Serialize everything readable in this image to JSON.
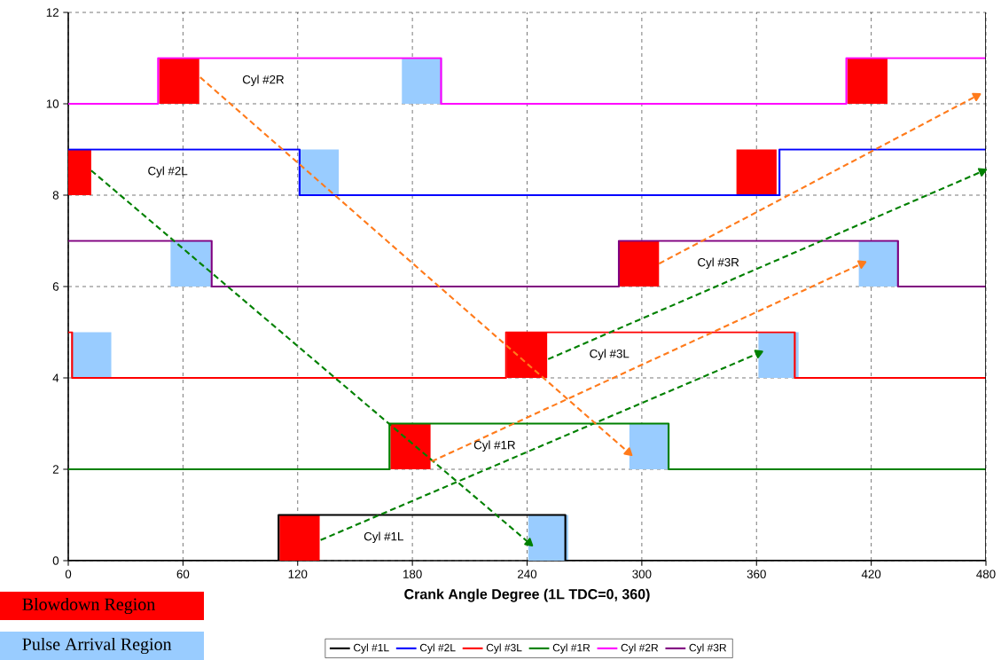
{
  "chart_data": {
    "type": "step",
    "xlabel": "**Crank Angle Degree (1L TDC=0, 360)**",
    "xlim": [
      0,
      480
    ],
    "ylim": [
      0,
      12
    ],
    "xticks": [
      0,
      60,
      120,
      180,
      240,
      300,
      360,
      420,
      480
    ],
    "yticks": [
      0,
      2,
      4,
      6,
      8,
      10,
      12
    ],
    "grid": true,
    "legend": "bottom",
    "series": [
      {
        "name": "Blowdown Region",
        "type": "bar",
        "color": "#ff0000",
        "x": [
          1.5,
          58,
          121,
          179,
          240,
          298.5,
          360,
          418
        ],
        "base": [
          8,
          10,
          0,
          2,
          4,
          6,
          8,
          10
        ],
        "values": [
          1,
          1,
          1,
          1,
          1,
          1,
          1,
          1
        ]
      },
      {
        "name": "Pulse Arrival Region",
        "type": "bar",
        "color": "#99ccff",
        "x": [
          12,
          64,
          131,
          185,
          251,
          304,
          371.5,
          424
        ],
        "base": [
          4,
          6,
          8,
          10,
          0,
          2,
          4,
          6
        ],
        "values": [
          1,
          1,
          1,
          1,
          1,
          1,
          1,
          1
        ]
      },
      {
        "name": "Cyl #1L",
        "color": "#000000",
        "x": [
          0,
          110,
          260,
          480
        ],
        "values": [
          0,
          1,
          0,
          0
        ]
      },
      {
        "name": "Cyl #2L",
        "color": "#0000ff",
        "x": [
          0,
          121,
          372,
          480
        ],
        "values": [
          9,
          8,
          9,
          9
        ]
      },
      {
        "name": "Cyl #3L",
        "color": "#ff0000",
        "x": [
          0,
          2,
          229,
          380,
          480
        ],
        "values": [
          5,
          4,
          5,
          4,
          4
        ]
      },
      {
        "name": "Cyl #1R",
        "color": "#008000",
        "x": [
          0,
          168,
          314,
          480
        ],
        "values": [
          2,
          3,
          2,
          2
        ]
      },
      {
        "name": "Cyl #2R",
        "color": "#ff00ff",
        "x": [
          0,
          47,
          195,
          407,
          480
        ],
        "values": [
          10,
          11,
          10,
          11,
          11
        ]
      },
      {
        "name": "Cyl #3R",
        "color": "#800080",
        "x": [
          0,
          75,
          288,
          434,
          480
        ],
        "values": [
          7,
          6,
          7,
          6,
          6
        ]
      },
      {
        "type": "line",
        "line_style": "dashed",
        "marker": "triangle",
        "color": "#008000",
        "x": [
          12,
          241
        ],
        "values": [
          8.54,
          0.39
        ]
      },
      {
        "type": "line",
        "line_style": "dashed",
        "marker": "triangle",
        "color": "#008000",
        "x": [
          132,
          361
        ],
        "values": [
          0.45,
          4.54
        ]
      },
      {
        "type": "line",
        "line_style": "dashed",
        "marker": "triangle",
        "color": "#008000",
        "x": [
          251,
          478
        ],
        "values": [
          4.41,
          8.52
        ]
      },
      {
        "type": "line",
        "line_style": "dashed",
        "marker": "triangle",
        "color": "#ff7b1c",
        "x": [
          69,
          293
        ],
        "values": [
          10.58,
          2.37
        ]
      },
      {
        "type": "line",
        "line_style": "dashed",
        "marker": "triangle",
        "color": "#ff7b1c",
        "x": [
          190,
          415
        ],
        "values": [
          2.17,
          6.5
        ]
      },
      {
        "type": "line",
        "line_style": "dashed",
        "marker": "triangle",
        "color": "#ff7b1c",
        "x": [
          309,
          475
        ],
        "values": [
          6.5,
          10.17
        ]
      }
    ],
    "annotations": [
      {
        "text": "Cyl #2R",
        "x": 102,
        "y": 11
      },
      {
        "text": "Cyl #2L",
        "x": 52,
        "y": 9
      },
      {
        "text": "Cyl #3R",
        "x": 340,
        "y": 7
      },
      {
        "text": "Cyl #3L",
        "x": 283,
        "y": 5
      },
      {
        "text": "Cyl #1R",
        "x": 223,
        "y": 3
      },
      {
        "text": "Cyl #1L",
        "x": 165,
        "y": 1
      }
    ]
  }
}
